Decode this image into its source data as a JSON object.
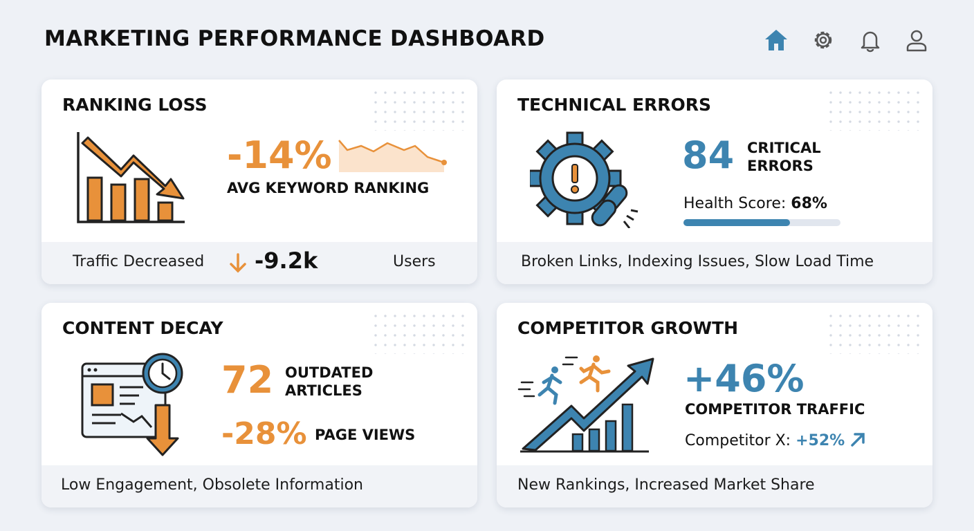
{
  "header": {
    "title": "MARKETING PERFORMANCE DASHBOARD"
  },
  "cards": [
    {
      "title": "RANKING LOSS",
      "metric": "-14%",
      "metric_label": "AVG KEYWORD RANKING",
      "footer": {
        "text": "Traffic Decreased",
        "value": "-9.2k",
        "unit": "Users"
      }
    },
    {
      "title": "TECHNICAL ERRORS",
      "metric": "84",
      "metric_label": "CRITICAL ERRORS",
      "health_label": "Health Score:",
      "health_value": 68,
      "health_value_label": "68%",
      "footer": {
        "text": "Broken Links, Indexing Issues, Slow Load Time"
      }
    },
    {
      "title": "CONTENT DECAY",
      "metric": "72",
      "metric_label": "OUTDATED ARTICLES",
      "secondary_metric": "-28%",
      "secondary_label": "PAGE VIEWS",
      "footer": {
        "text": "Low Engagement, Obsolete Information"
      }
    },
    {
      "title": "COMPETITOR GROWTH",
      "metric": "+46%",
      "metric_label": "COMPETITOR TRAFFIC",
      "competitor_label": "Competitor X:",
      "competitor_value": "+52%",
      "footer": {
        "text": "New Rankings, Increased Market Share"
      }
    }
  ]
}
